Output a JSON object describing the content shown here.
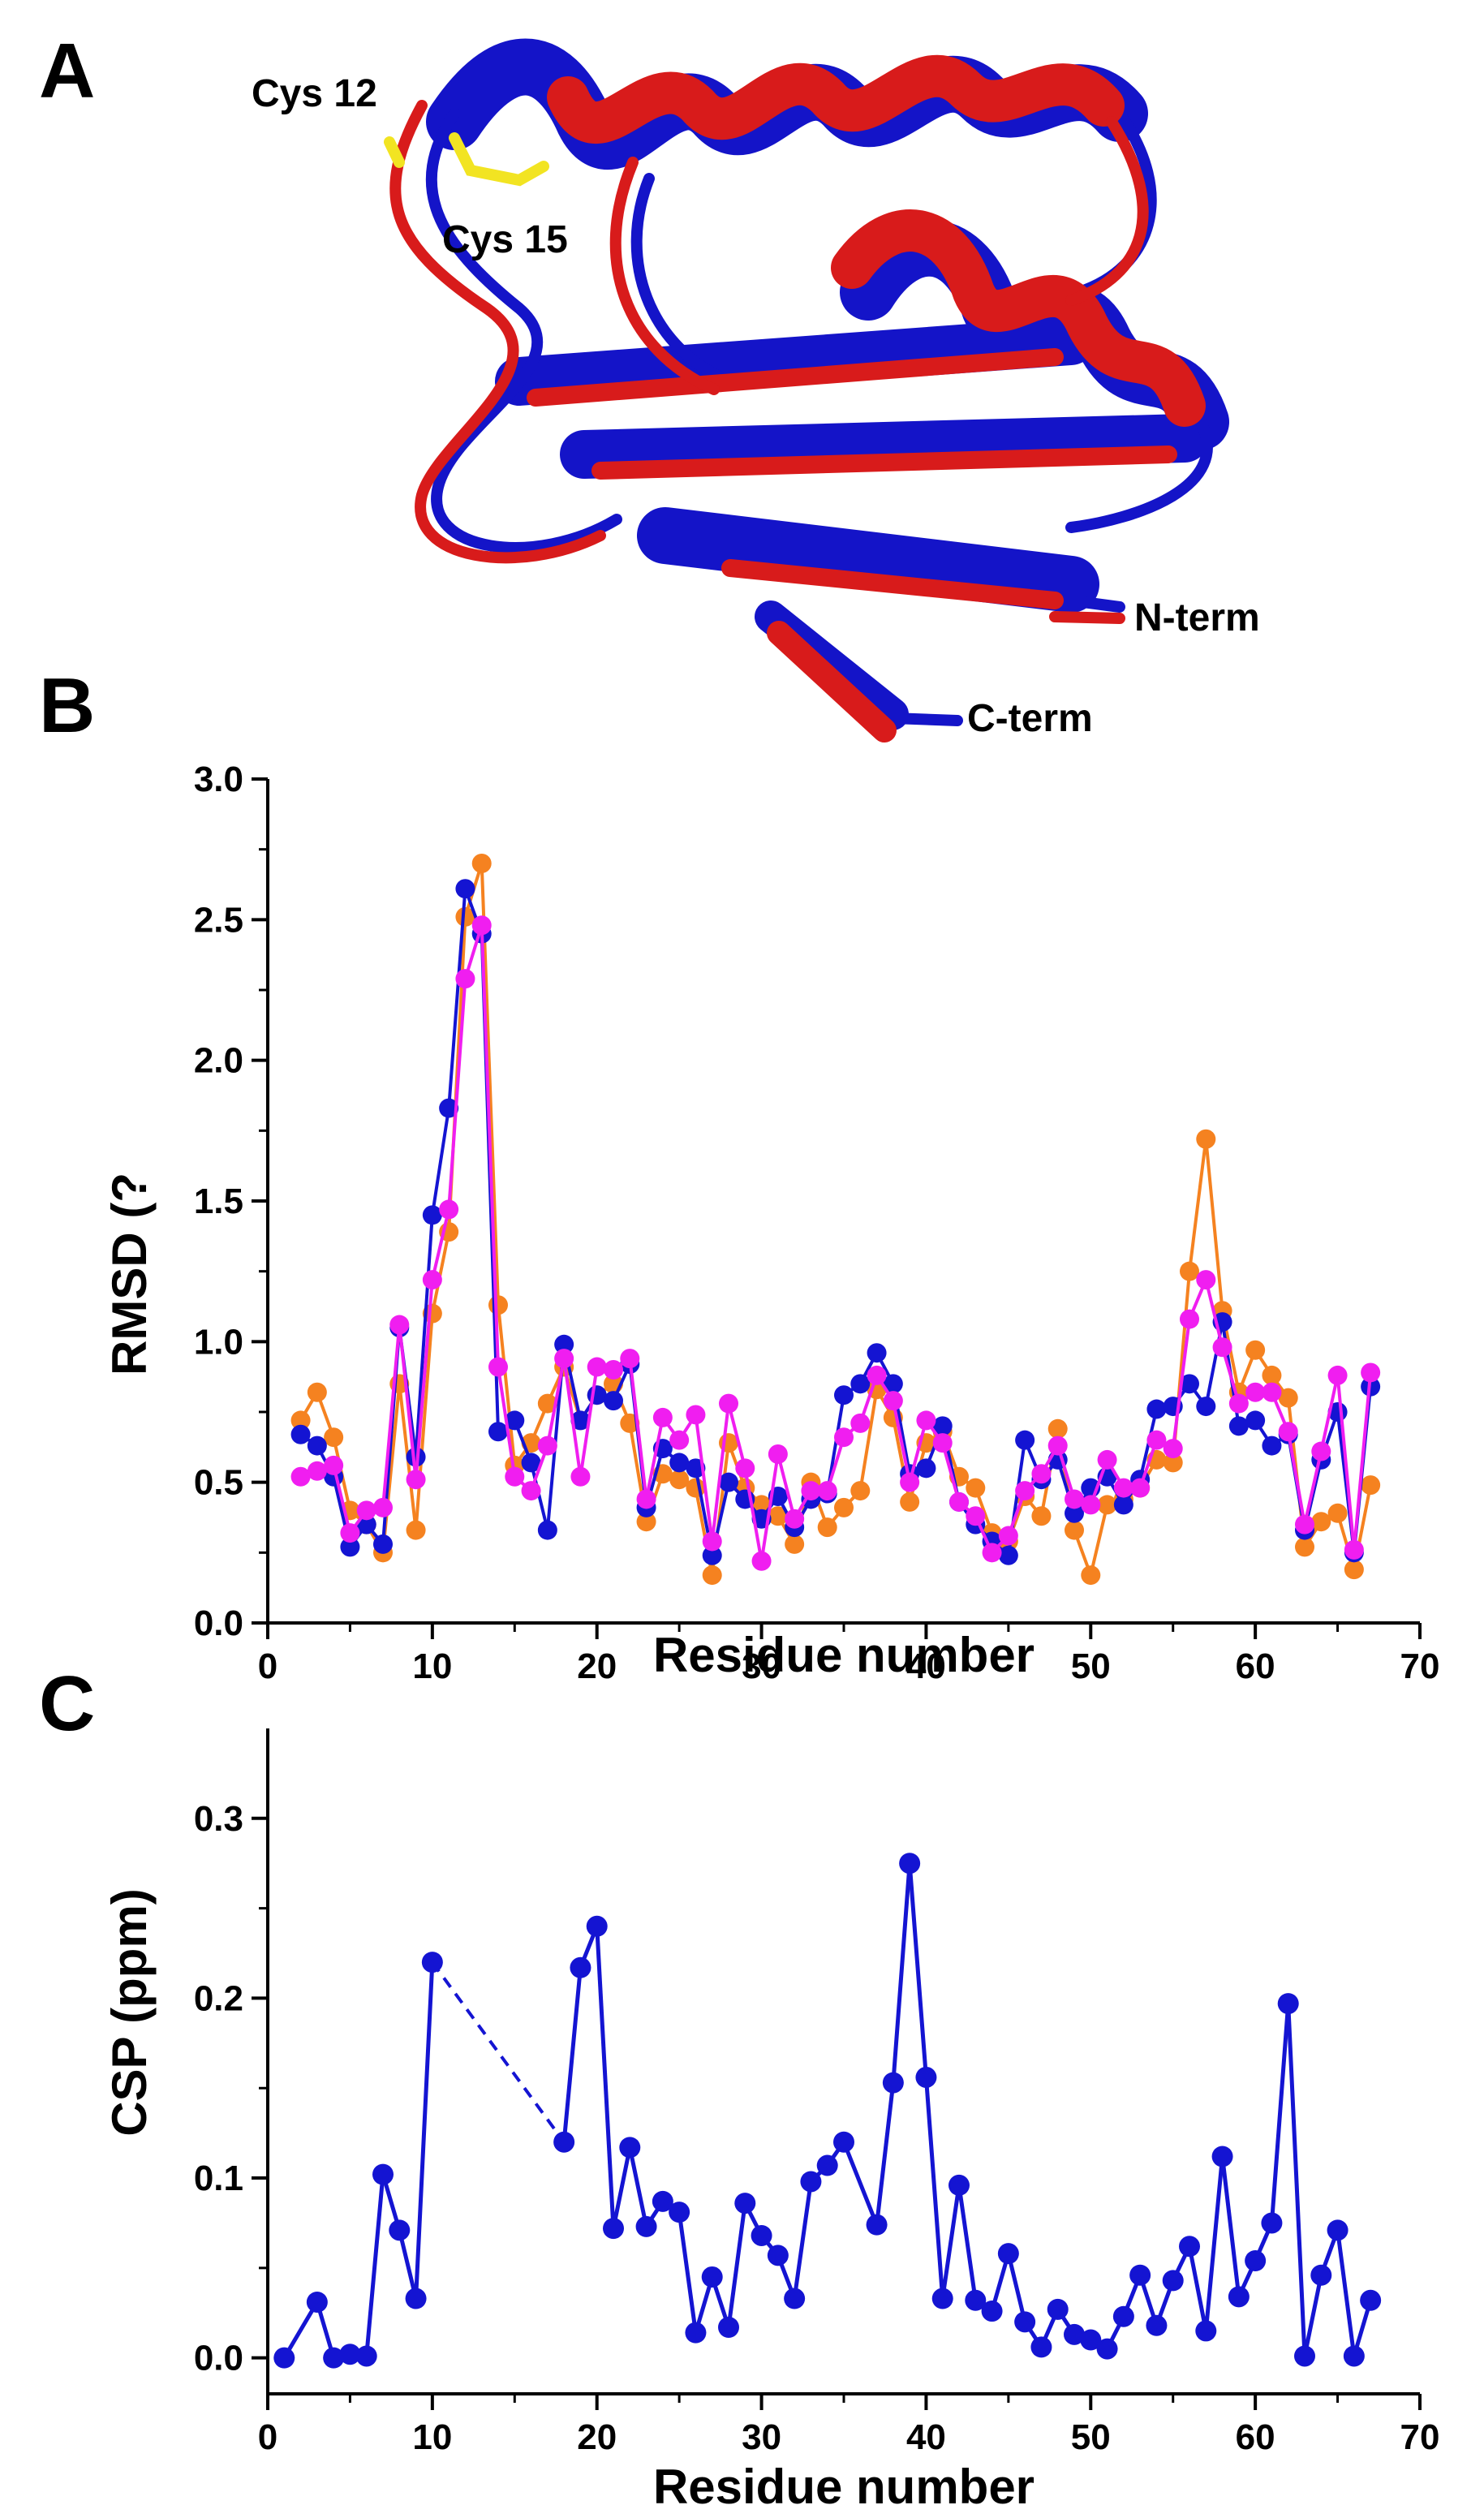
{
  "panels": {
    "a": "A",
    "b": "B",
    "c": "C"
  },
  "structure": {
    "label_cys12": "Cys 12",
    "label_cys15": "Cys 15",
    "label_nterm": "N-term",
    "label_cterm": "C-term",
    "colors": {
      "model_1": "#d81b1b",
      "model_2": "#1414c8",
      "disulfide": "#f2e422"
    }
  },
  "chart_data": [
    {
      "type": "line",
      "panel": "B",
      "xlabel": "Residue number",
      "ylabel": "RMSD (?",
      "xlim": [
        0,
        70
      ],
      "ylim": [
        0,
        3.0
      ],
      "xticks": [
        0,
        10,
        20,
        30,
        40,
        50,
        60,
        70
      ],
      "yticks": [
        0.0,
        0.5,
        1.0,
        1.5,
        2.0,
        2.5,
        3.0
      ],
      "xtick_labels": [
        "0",
        "10",
        "20",
        "30",
        "40",
        "50",
        "60",
        "70"
      ],
      "ytick_labels": [
        "0.0",
        "0.5",
        "1.0",
        "1.5",
        "2.0",
        "2.5",
        "3.0"
      ],
      "x": [
        2,
        3,
        4,
        5,
        6,
        7,
        8,
        9,
        10,
        11,
        12,
        13,
        14,
        15,
        16,
        17,
        18,
        19,
        20,
        21,
        22,
        23,
        24,
        25,
        26,
        27,
        28,
        29,
        30,
        31,
        32,
        33,
        34,
        35,
        36,
        37,
        38,
        39,
        40,
        41,
        42,
        43,
        44,
        45,
        46,
        47,
        48,
        49,
        50,
        51,
        52,
        53,
        54,
        55,
        56,
        57,
        58,
        59,
        60,
        61,
        62,
        63,
        64,
        65,
        66,
        67
      ],
      "series": [
        {
          "name": "orange",
          "color": "#f58220",
          "values": [
            0.72,
            0.82,
            0.66,
            0.4,
            0.35,
            0.25,
            0.85,
            0.33,
            1.1,
            1.39,
            2.51,
            2.7,
            1.13,
            0.56,
            0.64,
            0.78,
            0.91,
            0.72,
            0.81,
            0.85,
            0.71,
            0.36,
            0.53,
            0.51,
            0.48,
            0.17,
            0.64,
            0.48,
            0.42,
            0.38,
            0.28,
            0.5,
            0.34,
            0.41,
            0.47,
            0.83,
            0.73,
            0.43,
            0.64,
            0.68,
            0.52,
            0.48,
            0.32,
            0.29,
            0.45,
            0.38,
            0.69,
            0.33,
            0.17,
            0.42,
            0.44,
            0.48,
            0.58,
            0.57,
            1.25,
            1.72,
            1.11,
            0.82,
            0.97,
            0.88,
            0.8,
            0.27,
            0.36,
            0.39,
            0.19,
            0.49
          ]
        },
        {
          "name": "blue",
          "color": "#1414d2",
          "values": [
            0.67,
            0.63,
            0.52,
            0.27,
            0.35,
            0.28,
            1.05,
            0.59,
            1.45,
            1.83,
            2.61,
            2.45,
            0.68,
            0.72,
            0.57,
            0.33,
            0.99,
            0.72,
            0.81,
            0.79,
            0.92,
            0.41,
            0.62,
            0.57,
            0.55,
            0.24,
            0.5,
            0.44,
            0.37,
            0.45,
            0.34,
            0.44,
            0.46,
            0.81,
            0.85,
            0.96,
            0.85,
            0.53,
            0.55,
            0.7,
            0.43,
            0.35,
            0.29,
            0.24,
            0.65,
            0.51,
            0.58,
            0.39,
            0.48,
            0.52,
            0.42,
            0.51,
            0.76,
            0.77,
            0.85,
            0.77,
            1.07,
            0.7,
            0.72,
            0.63,
            0.67,
            0.33,
            0.58,
            0.75,
            0.25,
            0.84
          ]
        },
        {
          "name": "magenta",
          "color": "#f01ef0",
          "values": [
            0.52,
            0.54,
            0.56,
            0.32,
            0.4,
            0.41,
            1.06,
            0.51,
            1.22,
            1.47,
            2.29,
            2.48,
            0.91,
            0.52,
            0.47,
            0.63,
            0.94,
            0.52,
            0.91,
            0.9,
            0.94,
            0.44,
            0.73,
            0.65,
            0.74,
            0.29,
            0.78,
            0.55,
            0.22,
            0.6,
            0.37,
            0.47,
            0.47,
            0.66,
            0.71,
            0.88,
            0.79,
            0.5,
            0.72,
            0.64,
            0.43,
            0.38,
            0.25,
            0.31,
            0.47,
            0.53,
            0.63,
            0.44,
            0.42,
            0.58,
            0.48,
            0.48,
            0.65,
            0.62,
            1.08,
            1.22,
            0.98,
            0.78,
            0.82,
            0.82,
            0.68,
            0.35,
            0.61,
            0.88,
            0.26,
            0.89
          ]
        }
      ]
    },
    {
      "type": "line",
      "panel": "C",
      "xlabel": "Residue number",
      "ylabel": "CSP (ppm)",
      "xlim": [
        0,
        70
      ],
      "ylim": [
        -0.02,
        0.35
      ],
      "xticks": [
        0,
        10,
        20,
        30,
        40,
        50,
        60,
        70
      ],
      "yticks": [
        0.0,
        0.1,
        0.2,
        0.3
      ],
      "xtick_labels": [
        "0",
        "10",
        "20",
        "30",
        "40",
        "50",
        "60",
        "70"
      ],
      "ytick_labels": [
        "0.0",
        "0.1",
        "0.2",
        "0.3"
      ],
      "gap": {
        "from_x": 10,
        "to_x": 18,
        "style": "dashed"
      },
      "series": [
        {
          "name": "CSP",
          "color": "#1414d2",
          "x": [
            1,
            3,
            4,
            5,
            6,
            7,
            8,
            9,
            10,
            18,
            19,
            20,
            21,
            22,
            23,
            24,
            25,
            26,
            27,
            28,
            29,
            30,
            31,
            32,
            33,
            34,
            35,
            37,
            38,
            39,
            40,
            41,
            42,
            43,
            44,
            45,
            46,
            47,
            48,
            49,
            50,
            51,
            52,
            53,
            54,
            55,
            56,
            57,
            58,
            59,
            60,
            61,
            62,
            63,
            64,
            65,
            66,
            67
          ],
          "values": [
            0.0,
            0.031,
            0.0,
            0.002,
            0.001,
            0.102,
            0.071,
            0.033,
            0.22,
            0.12,
            0.217,
            0.24,
            0.072,
            0.117,
            0.073,
            0.087,
            0.081,
            0.014,
            0.045,
            0.017,
            0.086,
            0.068,
            0.057,
            0.033,
            0.098,
            0.107,
            0.12,
            0.074,
            0.153,
            0.275,
            0.156,
            0.033,
            0.096,
            0.032,
            0.026,
            0.058,
            0.02,
            0.006,
            0.027,
            0.013,
            0.01,
            0.005,
            0.023,
            0.046,
            0.018,
            0.043,
            0.062,
            0.015,
            0.112,
            0.034,
            0.054,
            0.075,
            0.197,
            0.001,
            0.046,
            0.071,
            0.001,
            0.032
          ]
        }
      ]
    }
  ]
}
